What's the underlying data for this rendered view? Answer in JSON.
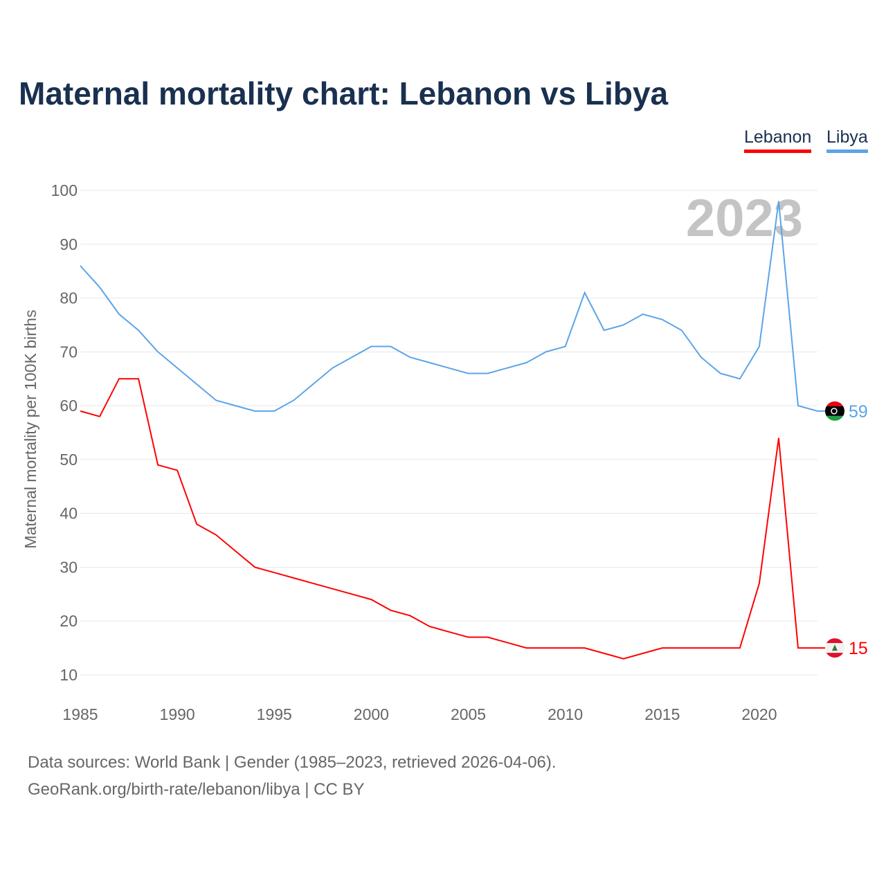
{
  "title": "Maternal mortality chart: Lebanon vs Libya",
  "footer": {
    "line1": "Data sources: World Bank | Gender (1985–2023, retrieved 2026-04-06).",
    "line2": "GeoRank.org/birth-rate/lebanon/libya | CC BY"
  },
  "chart_data": {
    "type": "line",
    "title": "Maternal mortality chart: Lebanon vs Libya",
    "ylabel": "Maternal mortality per 100K births",
    "xlabel": "",
    "year_label": "2023",
    "ylim": [
      10,
      100
    ],
    "xlim": [
      1985,
      2023
    ],
    "yticks": [
      10,
      20,
      30,
      40,
      50,
      60,
      70,
      80,
      90,
      100
    ],
    "xticks": [
      1985,
      1990,
      1995,
      2000,
      2005,
      2010,
      2015,
      2020
    ],
    "grid": true,
    "legend_position": "top-right",
    "x": [
      1985,
      1986,
      1987,
      1988,
      1989,
      1990,
      1991,
      1992,
      1993,
      1994,
      1995,
      1996,
      1997,
      1998,
      1999,
      2000,
      2001,
      2002,
      2003,
      2004,
      2005,
      2006,
      2007,
      2008,
      2009,
      2010,
      2011,
      2012,
      2013,
      2014,
      2015,
      2016,
      2017,
      2018,
      2019,
      2020,
      2021,
      2022,
      2023
    ],
    "series": [
      {
        "name": "Lebanon",
        "color": "#ff0000",
        "end_label": "15",
        "values": [
          59,
          58,
          65,
          65,
          49,
          48,
          38,
          36,
          33,
          30,
          29,
          28,
          27,
          26,
          25,
          24,
          22,
          21,
          19,
          18,
          17,
          17,
          16,
          15,
          15,
          15,
          15,
          14,
          13,
          14,
          15,
          15,
          15,
          15,
          15,
          27,
          54,
          15,
          15
        ]
      },
      {
        "name": "Libya",
        "color": "#5ba4e8",
        "end_label": "59",
        "values": [
          86,
          82,
          77,
          74,
          70,
          67,
          64,
          61,
          60,
          59,
          59,
          61,
          64,
          67,
          69,
          71,
          71,
          69,
          68,
          67,
          66,
          66,
          67,
          68,
          70,
          71,
          81,
          74,
          75,
          77,
          76,
          74,
          69,
          66,
          65,
          71,
          98,
          60,
          59
        ]
      }
    ]
  }
}
